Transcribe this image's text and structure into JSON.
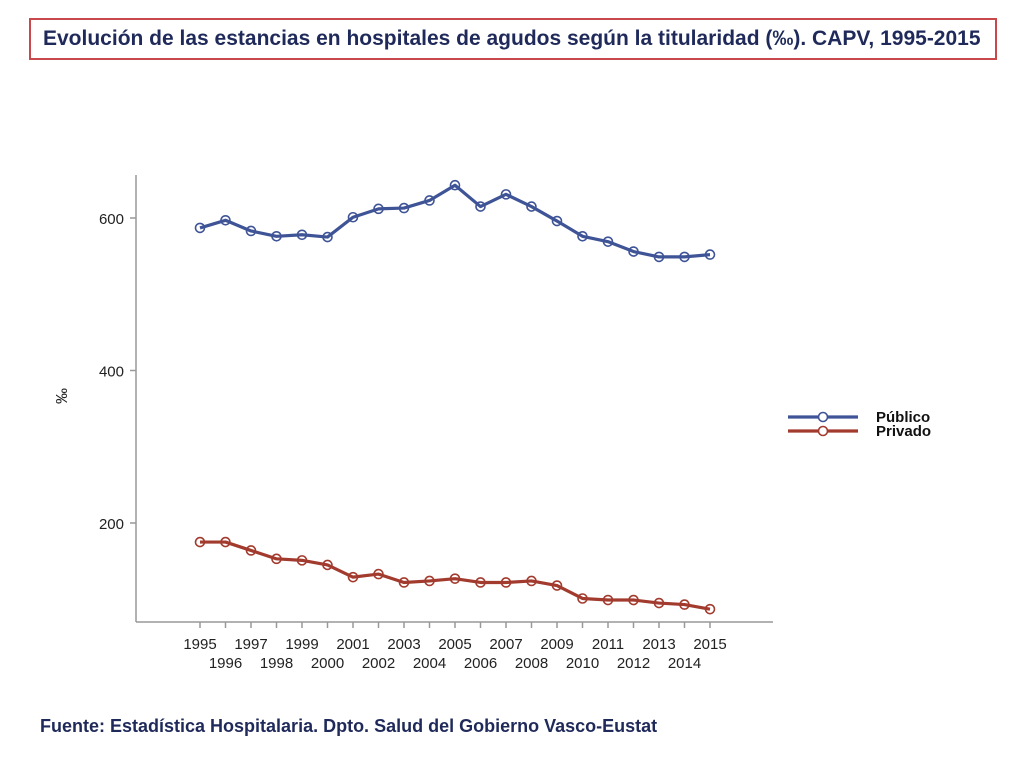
{
  "title": "Evolución de las estancias en hospitales de agudos según la titularidad (‰). CAPV, 1995-2015",
  "source": "Fuente: Estadística Hospitalaria. Dpto. Salud del Gobierno Vasco-Eustat",
  "chart_data": {
    "type": "line",
    "title": "Evolución de las estancias en hospitales de agudos según la titularidad (‰). CAPV, 1995-2015",
    "xlabel": "",
    "ylabel": "‰",
    "x": [
      "1995",
      "1996",
      "1997",
      "1998",
      "1999",
      "2000",
      "2001",
      "2002",
      "2003",
      "2004",
      "2005",
      "2006",
      "2007",
      "2008",
      "2009",
      "2010",
      "2011",
      "2012",
      "2013",
      "2014",
      "2015"
    ],
    "xlim": [
      1995,
      2015
    ],
    "ylim": [
      70,
      660
    ],
    "yticks": [
      "200",
      "400",
      "600"
    ],
    "legend_position": "right",
    "series": [
      {
        "name": "Público",
        "color": "#3f5496",
        "values": [
          587,
          597,
          583,
          576,
          578,
          575,
          601,
          612,
          613,
          623,
          643,
          615,
          631,
          615,
          596,
          576,
          569,
          556,
          549,
          549,
          552
        ]
      },
      {
        "name": "Privado",
        "color": "#a23b2e",
        "values": [
          175,
          175,
          164,
          153,
          151,
          145,
          129,
          133,
          122,
          124,
          127,
          122,
          122,
          124,
          118,
          101,
          99,
          99,
          95,
          93,
          87
        ]
      }
    ]
  }
}
